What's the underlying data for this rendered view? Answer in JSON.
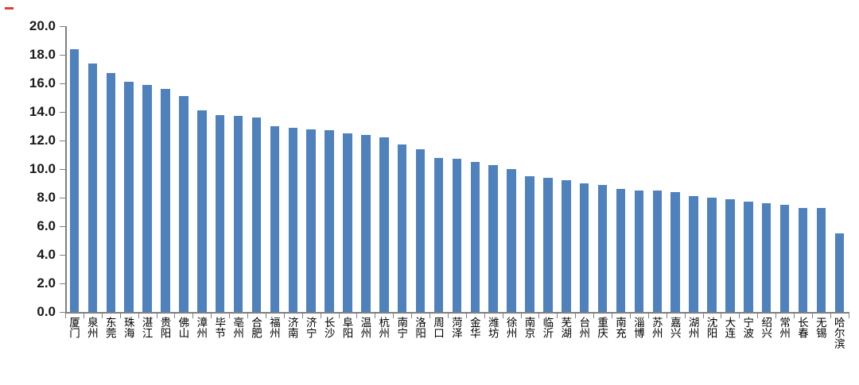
{
  "chart_data": {
    "type": "bar",
    "title": "",
    "categories": [
      "厦门",
      "泉州",
      "东莞",
      "珠海",
      "湛江",
      "贵阳",
      "佛山",
      "漳州",
      "毕节",
      "亳州",
      "合肥",
      "福州",
      "济南",
      "济宁",
      "长沙",
      "阜阳",
      "温州",
      "杭州",
      "南宁",
      "洛阳",
      "周口",
      "菏泽",
      "金华",
      "潍坊",
      "徐州",
      "南京",
      "临沂",
      "芜湖",
      "台州",
      "重庆",
      "南充",
      "淄博",
      "苏州",
      "嘉兴",
      "湖州",
      "沈阳",
      "大连",
      "宁波",
      "绍兴",
      "常州",
      "长春",
      "无锡",
      "哈尔滨"
    ],
    "values": [
      18.4,
      17.4,
      16.7,
      16.1,
      15.9,
      15.6,
      15.1,
      14.1,
      13.8,
      13.7,
      13.6,
      13.0,
      12.9,
      12.8,
      12.7,
      12.5,
      12.4,
      12.2,
      11.7,
      11.4,
      10.8,
      10.7,
      10.5,
      10.3,
      10.0,
      9.5,
      9.4,
      9.2,
      9.0,
      8.9,
      8.6,
      8.5,
      8.5,
      8.4,
      8.1,
      8.0,
      7.9,
      7.7,
      7.6,
      7.5,
      7.3,
      7.3,
      5.5
    ],
    "xlabel": "",
    "ylabel": "",
    "ylim": [
      0,
      20
    ],
    "ytick_step": 2,
    "ytick_labels": [
      "20.0",
      "18.0",
      "16.0",
      "14.0",
      "12.0",
      "10.0",
      "8.0",
      "6.0",
      "4.0",
      "2.0",
      "0.0"
    ],
    "bar_color": "#4f81bd",
    "axis_color": "#7f7f7f",
    "grid": "off",
    "legend": "none"
  },
  "decorations": {
    "top_left_red_dash_color": "#e03a3a"
  }
}
